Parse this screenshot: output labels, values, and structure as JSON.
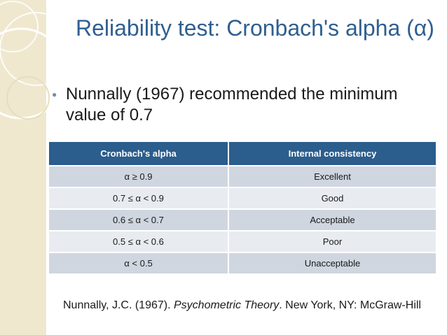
{
  "slide": {
    "title": "Reliability test: Cronbach's alpha (α)",
    "bullet": "Nunnally (1967) recommended the minimum value of 0.7",
    "table": {
      "headers": [
        "Cronbach's alpha",
        "Internal consistency"
      ],
      "rows": [
        [
          "α ≥ 0.9",
          "Excellent"
        ],
        [
          "0.7 ≤ α < 0.9",
          "Good"
        ],
        [
          "0.6 ≤ α < 0.7",
          "Acceptable"
        ],
        [
          "0.5 ≤ α < 0.6",
          "Poor"
        ],
        [
          "α < 0.5",
          "Unacceptable"
        ]
      ]
    },
    "reference": {
      "prefix": "Nunnally,  J.C. (1967). ",
      "title": "Psychometric Theory",
      "suffix": ". New York, NY: McGraw-Hill"
    }
  },
  "colors": {
    "title": "#2f5f8f",
    "header_bg": "#2b5d8d",
    "row_dark": "#cfd6e0",
    "row_light": "#e8ecf1",
    "band": "#efe8cf"
  }
}
